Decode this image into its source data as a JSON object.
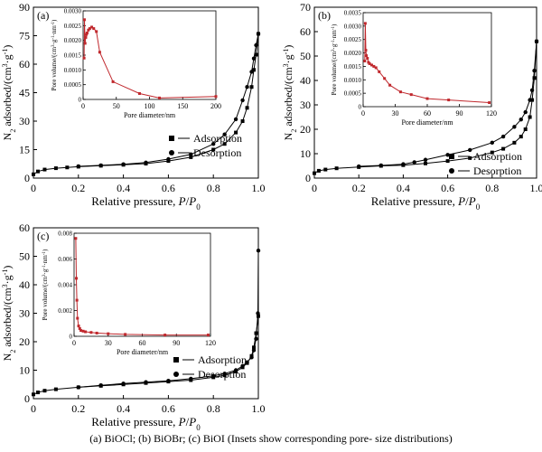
{
  "caption": "(a)  BiOCl;  (b)  BiOBr;  (c) BiOI  (Insets show corresponding pore- size distributions)",
  "colors": {
    "main_series": "#000000",
    "inset_series": "#c0282d"
  },
  "chart_data": [
    {
      "panel": "(a)",
      "type": "line",
      "xlabel": "Relative pressure, P/P0",
      "ylabel": "N2 adsorbed/(cm3·g-1)",
      "xlim": [
        0,
        1.0
      ],
      "ylim": [
        0,
        90
      ],
      "xticks": [
        0,
        0.2,
        0.4,
        0.6,
        0.8,
        1.0
      ],
      "yticks": [
        0,
        15,
        30,
        45,
        60,
        75,
        90
      ],
      "legend": "bottom-right",
      "series": [
        {
          "name": "Adsorption",
          "marker": "square",
          "x": [
            0.0,
            0.02,
            0.05,
            0.1,
            0.15,
            0.2,
            0.3,
            0.4,
            0.5,
            0.6,
            0.7,
            0.8,
            0.85,
            0.9,
            0.93,
            0.95,
            0.97,
            0.98,
            0.99,
            1.0
          ],
          "y": [
            2,
            3.5,
            4.5,
            5.2,
            5.6,
            6,
            6.5,
            7,
            7.6,
            9,
            11,
            15,
            18,
            24,
            30,
            37,
            48,
            57,
            65,
            76
          ]
        },
        {
          "name": "Desorption",
          "marker": "circle",
          "x": [
            1.0,
            0.99,
            0.98,
            0.97,
            0.95,
            0.93,
            0.9,
            0.85,
            0.8,
            0.7,
            0.6,
            0.5,
            0.4,
            0.3,
            0.2
          ],
          "y": [
            76,
            70,
            63,
            56,
            48,
            41,
            31,
            23,
            18,
            12.5,
            10,
            8.2,
            7.3,
            6.7,
            6.2
          ]
        }
      ],
      "inset": {
        "type": "line",
        "xlabel": "Pore diameter/nm",
        "ylabel": "Pore volume/(cm3·g-1·nm-1)",
        "xlim": [
          0,
          200
        ],
        "ylim": [
          0,
          0.003
        ],
        "xticks": [
          0,
          50,
          100,
          150,
          200
        ],
        "yticks": [
          0,
          0.0005,
          0.001,
          0.0015,
          0.002,
          0.0025,
          0.003
        ],
        "ytick_labels": [
          "0",
          "0.0005",
          "0.0010",
          "0.0015",
          "0.0020",
          "0.0025",
          "0.0030"
        ],
        "x": [
          1.5,
          2,
          3,
          4,
          5,
          6,
          8,
          10,
          13,
          16,
          20,
          25,
          45,
          85,
          115,
          200
        ],
        "y": [
          0.0014,
          0.0027,
          0.0019,
          0.0021,
          0.0022,
          0.00225,
          0.00235,
          0.0024,
          0.00245,
          0.0024,
          0.0023,
          0.0016,
          0.0006,
          0.0002,
          5e-05,
          0.0001
        ]
      }
    },
    {
      "panel": "(b)",
      "type": "line",
      "xlabel": "Relative pressure, P/P0",
      "ylabel": "N2 adsorbed/(cm3·g-1)",
      "xlim": [
        0,
        1.0
      ],
      "ylim": [
        0,
        70
      ],
      "xticks": [
        0,
        0.2,
        0.4,
        0.6,
        0.8,
        1.0
      ],
      "yticks": [
        0,
        10,
        20,
        30,
        40,
        50,
        60,
        70
      ],
      "legend": "bottom-right",
      "series": [
        {
          "name": "Adsorption",
          "marker": "square",
          "x": [
            0.0,
            0.02,
            0.05,
            0.1,
            0.2,
            0.3,
            0.4,
            0.5,
            0.6,
            0.7,
            0.8,
            0.85,
            0.9,
            0.93,
            0.95,
            0.97,
            0.98,
            0.99,
            1.0
          ],
          "y": [
            2,
            3,
            3.5,
            4,
            4.5,
            5,
            5.3,
            6,
            7,
            8.2,
            10.5,
            12,
            14.5,
            17,
            20,
            25,
            32,
            41,
            56
          ]
        },
        {
          "name": "Desorption",
          "marker": "circle",
          "x": [
            1.0,
            0.99,
            0.98,
            0.97,
            0.95,
            0.93,
            0.9,
            0.85,
            0.8,
            0.7,
            0.6,
            0.5,
            0.45,
            0.4,
            0.3,
            0.2
          ],
          "y": [
            56,
            44,
            36,
            32,
            27,
            24,
            21,
            17,
            14.5,
            11.5,
            9.5,
            7.5,
            6.5,
            5.7,
            5.2,
            4.8
          ]
        }
      ],
      "inset": {
        "type": "line",
        "xlabel": "Pore diameter/nm",
        "ylabel": "Pore volume/(cm3·g-1·nm-1)",
        "xlim": [
          0,
          120
        ],
        "ylim": [
          0,
          0.0035
        ],
        "xticks": [
          0,
          30,
          60,
          90,
          120
        ],
        "yticks": [
          0,
          0.0005,
          0.001,
          0.0015,
          0.002,
          0.0025,
          0.003,
          0.0035
        ],
        "ytick_labels": [
          "0",
          "0.0005",
          "0.0010",
          "0.0015",
          "0.0020",
          "0.0025",
          "0.0030",
          "0.0035"
        ],
        "x": [
          1.5,
          2,
          2.5,
          3,
          4,
          5,
          6,
          8,
          10,
          12,
          15,
          20,
          25,
          35,
          45,
          60,
          80,
          118
        ],
        "y": [
          0.0017,
          0.0031,
          0.0021,
          0.0019,
          0.0018,
          0.00165,
          0.0016,
          0.00155,
          0.0015,
          0.00145,
          0.0013,
          0.00105,
          0.0008,
          0.00055,
          0.00045,
          0.0003,
          0.00025,
          0.00015
        ]
      }
    },
    {
      "panel": "(c)",
      "type": "line",
      "xlabel": "Relative pressure, P/P0",
      "ylabel": "N2 adsorbed/(cm3·g-1)",
      "xlim": [
        0,
        1.0
      ],
      "ylim": [
        0,
        60
      ],
      "xticks": [
        0,
        0.2,
        0.4,
        0.6,
        0.8,
        1.0
      ],
      "yticks": [
        0,
        10,
        20,
        30,
        40,
        50,
        60
      ],
      "legend": "bottom-right",
      "series": [
        {
          "name": "Adsorption",
          "marker": "square",
          "x": [
            0.0,
            0.02,
            0.05,
            0.1,
            0.2,
            0.3,
            0.4,
            0.5,
            0.6,
            0.7,
            0.8,
            0.85,
            0.9,
            0.93,
            0.95,
            0.97,
            0.98,
            0.99,
            1.0
          ],
          "y": [
            1.5,
            2.2,
            2.8,
            3.3,
            4,
            4.5,
            5,
            5.5,
            6,
            6.5,
            7.5,
            8.2,
            9.5,
            11,
            12.5,
            15,
            18,
            23,
            29
          ]
        },
        {
          "name": "Desorption",
          "marker": "circle",
          "x": [
            1.0,
            0.998,
            0.99,
            0.98,
            0.97,
            0.95,
            0.93,
            0.9,
            0.85,
            0.8,
            0.7,
            0.6,
            0.5,
            0.4,
            0.3,
            0.2
          ],
          "y": [
            52,
            30,
            21,
            17,
            14.5,
            12.8,
            11.5,
            10,
            8.8,
            8,
            7,
            6.3,
            5.8,
            5.3,
            4.7,
            4
          ]
        }
      ],
      "inset": {
        "type": "line",
        "xlabel": "Pore diameter/nm",
        "ylabel": "Pore volume/(cm3·g-1·nm-1)",
        "xlim": [
          0,
          120
        ],
        "ylim": [
          0,
          0.008
        ],
        "xticks": [
          0,
          30,
          60,
          90,
          120
        ],
        "yticks": [
          0,
          0.002,
          0.004,
          0.006,
          0.008
        ],
        "ytick_labels": [
          "0",
          "0.002",
          "0.004",
          "0.006",
          "0.008"
        ],
        "x": [
          1.5,
          2,
          2.5,
          3,
          4,
          5,
          6,
          8,
          10,
          15,
          20,
          30,
          45,
          80,
          118
        ],
        "y": [
          0.0076,
          0.0045,
          0.0028,
          0.0014,
          0.0008,
          0.0006,
          0.00045,
          0.0004,
          0.00035,
          0.0003,
          0.00025,
          0.0002,
          0.00015,
          0.0001,
          0.0001
        ]
      }
    }
  ]
}
